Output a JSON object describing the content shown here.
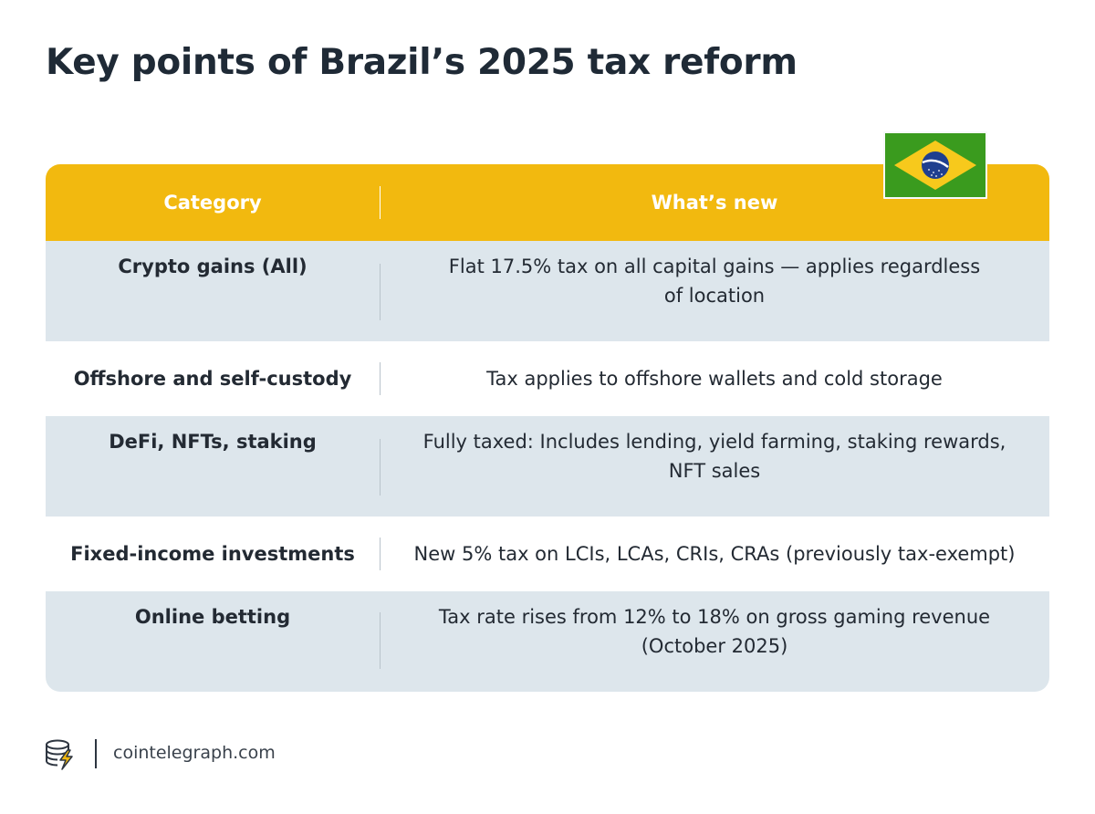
{
  "title": "Key points of Brazil’s 2025 tax reform",
  "table": {
    "headers": {
      "category": "Category",
      "whats_new": "What’s new"
    },
    "rows": [
      {
        "category": "Crypto gains (All)",
        "whats_new_lines": [
          "Flat 17.5% tax on all capital gains — applies regardless",
          "of location"
        ]
      },
      {
        "category": "Offshore and self-custody",
        "whats_new_lines": [
          "Tax applies to offshore wallets and cold storage"
        ]
      },
      {
        "category": "DeFi, NFTs, staking",
        "whats_new_lines": [
          "Fully taxed: Includes lending, yield farming, staking rewards,",
          "NFT sales"
        ]
      },
      {
        "category": "Fixed-income investments",
        "whats_new_lines": [
          "New 5% tax on LCIs, LCAs, CRIs, CRAs (previously tax-exempt)"
        ]
      },
      {
        "category": "Online betting",
        "whats_new_lines": [
          "Tax rate rises from 12% to 18% on gross gaming revenue",
          "(October 2025)"
        ]
      }
    ]
  },
  "flag": {
    "icon": "brazil-flag-icon",
    "colors": {
      "green": "#3a9b1e",
      "yellow": "#f7c91c",
      "blue": "#1f3f8f"
    }
  },
  "footer": {
    "logo_icon": "cointelegraph-logo-icon",
    "site": "cointelegraph.com"
  },
  "colors": {
    "header": "#f2b90f",
    "row_shaded": "#dde6ec",
    "title": "#1f2a36"
  }
}
